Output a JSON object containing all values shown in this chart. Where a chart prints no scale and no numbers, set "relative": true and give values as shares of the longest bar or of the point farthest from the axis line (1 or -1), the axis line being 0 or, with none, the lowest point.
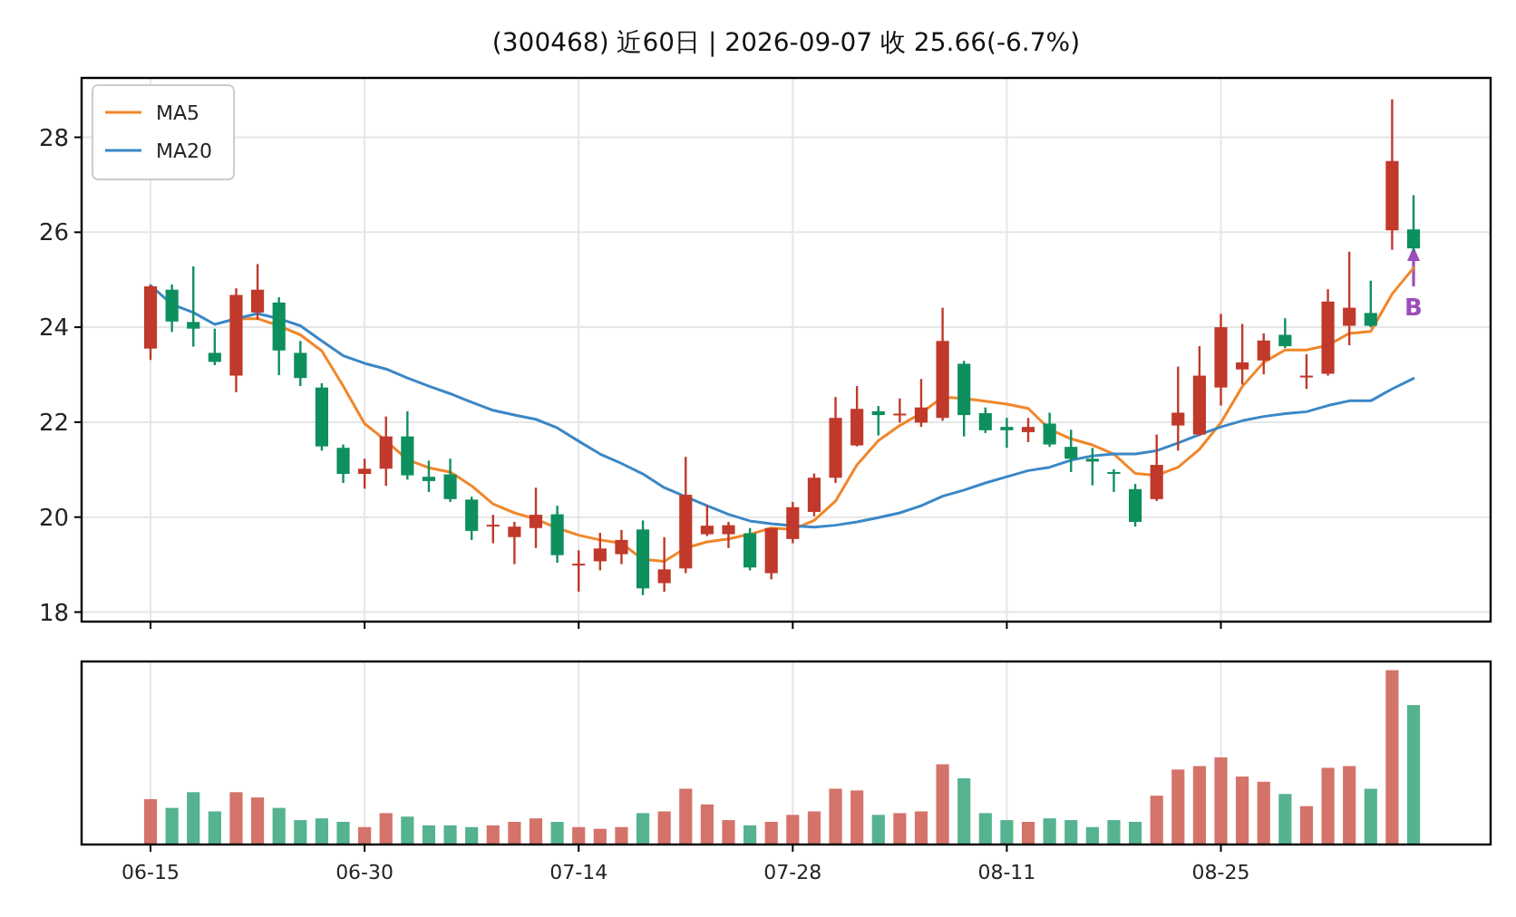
{
  "chart_data": [
    {
      "type": "candlestick",
      "title": "(300468) 近60日 | 2026-09-07 收 25.66(-6.7%)",
      "categories": [
        null,
        null,
        null,
        null,
        null,
        null,
        null,
        null,
        null,
        null,
        null,
        null,
        null,
        null,
        null,
        null,
        null,
        null,
        null,
        null,
        null,
        null,
        null,
        null,
        null,
        null,
        null,
        null,
        null,
        null,
        null,
        null,
        null,
        null,
        null,
        null,
        null,
        null,
        null,
        null,
        null,
        null,
        null,
        null,
        null,
        null,
        null,
        null,
        null,
        null,
        null,
        null,
        null,
        null,
        null,
        null,
        null,
        null,
        null,
        null
      ],
      "ohlc": [
        [
          23.55,
          24.88,
          23.31,
          24.86
        ],
        [
          24.79,
          24.9,
          23.9,
          24.12
        ],
        [
          24.11,
          25.28,
          23.59,
          23.97
        ],
        [
          23.46,
          23.97,
          23.2,
          23.27
        ],
        [
          22.98,
          24.82,
          22.63,
          24.68
        ],
        [
          24.31,
          25.33,
          24.16,
          24.79
        ],
        [
          24.52,
          24.63,
          22.99,
          23.51
        ],
        [
          23.46,
          23.71,
          22.76,
          22.93
        ],
        [
          22.73,
          22.82,
          21.4,
          21.49
        ],
        [
          21.46,
          21.53,
          20.72,
          20.91
        ],
        [
          20.91,
          21.23,
          20.6,
          21.02
        ],
        [
          21.02,
          22.12,
          20.66,
          21.7
        ],
        [
          21.7,
          22.23,
          20.79,
          20.88
        ],
        [
          20.85,
          21.19,
          20.53,
          20.76
        ],
        [
          20.9,
          21.23,
          20.32,
          20.38
        ],
        [
          20.37,
          20.43,
          19.52,
          19.71
        ],
        [
          19.82,
          20.05,
          19.45,
          19.84
        ],
        [
          19.58,
          19.9,
          19.01,
          19.8
        ],
        [
          19.77,
          20.62,
          19.35,
          20.05
        ],
        [
          20.06,
          20.24,
          19.04,
          19.2
        ],
        [
          19.0,
          19.3,
          18.43,
          19.02
        ],
        [
          19.07,
          19.67,
          18.88,
          19.34
        ],
        [
          19.22,
          19.73,
          19.01,
          19.52
        ],
        [
          19.74,
          19.93,
          18.36,
          18.5
        ],
        [
          18.61,
          19.58,
          18.43,
          18.9
        ],
        [
          18.92,
          21.27,
          18.82,
          20.47
        ],
        [
          19.64,
          20.25,
          19.6,
          19.82
        ],
        [
          19.64,
          19.9,
          19.35,
          19.83
        ],
        [
          19.66,
          19.77,
          18.88,
          18.94
        ],
        [
          18.82,
          19.77,
          18.69,
          19.77
        ],
        [
          19.54,
          20.32,
          19.45,
          20.21
        ],
        [
          20.11,
          20.92,
          20.02,
          20.83
        ],
        [
          20.83,
          22.53,
          20.72,
          22.09
        ],
        [
          21.51,
          22.76,
          21.49,
          22.28
        ],
        [
          22.23,
          22.34,
          21.72,
          22.15
        ],
        [
          22.16,
          22.5,
          21.99,
          22.18
        ],
        [
          21.99,
          22.91,
          21.9,
          22.31
        ],
        [
          22.09,
          24.41,
          22.03,
          23.71
        ],
        [
          23.23,
          23.29,
          21.7,
          22.15
        ],
        [
          22.19,
          22.31,
          21.77,
          21.83
        ],
        [
          21.9,
          22.09,
          21.46,
          21.83
        ],
        [
          21.79,
          22.09,
          21.58,
          21.9
        ],
        [
          21.97,
          22.2,
          21.48,
          21.53
        ],
        [
          21.48,
          21.84,
          20.95,
          21.23
        ],
        [
          21.23,
          21.46,
          20.67,
          21.17
        ],
        [
          20.95,
          21.01,
          20.53,
          20.94
        ],
        [
          20.59,
          20.7,
          19.8,
          19.9
        ],
        [
          20.38,
          21.74,
          20.34,
          21.1
        ],
        [
          21.93,
          23.17,
          21.4,
          22.2
        ],
        [
          21.74,
          23.6,
          21.71,
          22.98
        ],
        [
          22.73,
          24.28,
          22.35,
          24.0
        ],
        [
          23.11,
          24.07,
          22.79,
          23.26
        ],
        [
          23.3,
          23.87,
          23.01,
          23.72
        ],
        [
          23.84,
          24.19,
          23.56,
          23.6
        ],
        [
          22.96,
          23.43,
          22.7,
          22.98
        ],
        [
          23.02,
          24.8,
          22.98,
          24.54
        ],
        [
          24.03,
          25.59,
          23.62,
          24.41
        ],
        [
          24.3,
          24.98,
          24.0,
          24.03
        ],
        [
          26.04,
          28.8,
          25.63,
          27.5
        ],
        [
          26.06,
          26.78,
          25.6,
          25.66
        ]
      ],
      "colors": [
        "#c0392b",
        "#0e8f5e",
        "#0e8f5e",
        "#0e8f5e",
        "#c0392b",
        "#c0392b",
        "#0e8f5e",
        "#0e8f5e",
        "#0e8f5e",
        "#0e8f5e",
        "#c0392b",
        "#c0392b",
        "#0e8f5e",
        "#0e8f5e",
        "#0e8f5e",
        "#0e8f5e",
        "#c0392b",
        "#c0392b",
        "#c0392b",
        "#0e8f5e",
        "#c0392b",
        "#c0392b",
        "#c0392b",
        "#0e8f5e",
        "#c0392b",
        "#c0392b",
        "#c0392b",
        "#c0392b",
        "#0e8f5e",
        "#c0392b",
        "#c0392b",
        "#c0392b",
        "#c0392b",
        "#c0392b",
        "#0e8f5e",
        "#c0392b",
        "#c0392b",
        "#c0392b",
        "#0e8f5e",
        "#0e8f5e",
        "#0e8f5e",
        "#c0392b",
        "#0e8f5e",
        "#0e8f5e",
        "#0e8f5e",
        "#0e8f5e",
        "#0e8f5e",
        "#c0392b",
        "#c0392b",
        "#c0392b",
        "#c0392b",
        "#c0392b",
        "#c0392b",
        "#0e8f5e",
        "#c0392b",
        "#c0392b",
        "#c0392b",
        "#0e8f5e",
        "#c0392b",
        "#0e8f5e"
      ],
      "series": [
        {
          "name": "MA5",
          "type": "line",
          "color": "#f0862a",
          "values": [
            null,
            null,
            null,
            null,
            24.18,
            24.18,
            24.03,
            23.84,
            23.5,
            22.76,
            21.97,
            21.61,
            21.21,
            21.04,
            20.95,
            20.66,
            20.28,
            20.09,
            19.96,
            19.77,
            19.62,
            19.52,
            19.45,
            19.11,
            19.07,
            19.35,
            19.48,
            19.54,
            19.64,
            19.77,
            19.74,
            19.93,
            20.34,
            21.1,
            21.61,
            21.93,
            22.19,
            22.53,
            22.5,
            22.44,
            22.38,
            22.29,
            21.85,
            21.65,
            21.52,
            21.33,
            20.92,
            20.88,
            21.05,
            21.43,
            21.99,
            22.75,
            23.26,
            23.52,
            23.52,
            23.62,
            23.87,
            23.91,
            24.7,
            25.25
          ]
        },
        {
          "name": "MA20",
          "type": "line",
          "color": "#3a87c6",
          "values": [
            24.88,
            24.48,
            24.31,
            24.06,
            24.18,
            24.29,
            24.18,
            24.03,
            23.71,
            23.4,
            23.24,
            23.12,
            22.93,
            22.76,
            22.6,
            22.42,
            22.25,
            22.15,
            22.06,
            21.88,
            21.6,
            21.33,
            21.13,
            20.91,
            20.62,
            20.43,
            20.24,
            20.06,
            19.92,
            19.86,
            19.82,
            19.79,
            19.83,
            19.9,
            19.99,
            20.09,
            20.24,
            20.44,
            20.57,
            20.72,
            20.85,
            20.98,
            21.05,
            21.2,
            21.29,
            21.33,
            21.33,
            21.4,
            21.56,
            21.74,
            21.9,
            22.03,
            22.12,
            22.18,
            22.22,
            22.35,
            22.45,
            22.45,
            22.7,
            22.92
          ]
        }
      ],
      "ylim": [
        17.8,
        29.25
      ],
      "yticks": [
        18,
        20,
        22,
        24,
        26,
        28
      ],
      "grid": true,
      "legend": "top left",
      "tick_labels": "y",
      "annotations": [
        {
          "text": "B",
          "y": 25.7
        }
      ]
    },
    {
      "type": "bar",
      "relative": true,
      "tick_labels": "x",
      "grid": "x",
      "categories": [
        "06-15",
        null,
        null,
        null,
        null,
        null,
        null,
        null,
        null,
        null,
        "06-30",
        null,
        null,
        null,
        null,
        null,
        null,
        null,
        null,
        null,
        "07-14",
        null,
        null,
        null,
        null,
        null,
        null,
        null,
        null,
        null,
        "07-28",
        null,
        null,
        null,
        null,
        null,
        null,
        null,
        null,
        null,
        "08-11",
        null,
        null,
        null,
        null,
        null,
        null,
        null,
        null,
        null,
        "08-25",
        null,
        null,
        null,
        null,
        null,
        null,
        null,
        null,
        null
      ],
      "values": [
        0.26,
        0.21,
        0.3,
        0.19,
        0.3,
        0.27,
        0.21,
        0.14,
        0.15,
        0.13,
        0.1,
        0.18,
        0.16,
        0.11,
        0.11,
        0.1,
        0.11,
        0.13,
        0.15,
        0.13,
        0.1,
        0.09,
        0.1,
        0.18,
        0.19,
        0.32,
        0.23,
        0.14,
        0.11,
        0.13,
        0.17,
        0.19,
        0.32,
        0.31,
        0.17,
        0.18,
        0.19,
        0.46,
        0.38,
        0.18,
        0.14,
        0.13,
        0.15,
        0.14,
        0.1,
        0.14,
        0.13,
        0.28,
        0.43,
        0.45,
        0.5,
        0.39,
        0.36,
        0.29,
        0.22,
        0.44,
        0.45,
        0.32,
        1,
        0.8
      ],
      "colors": [
        "#d4736a",
        "#55b38f",
        "#55b38f",
        "#55b38f",
        "#d4736a",
        "#d4736a",
        "#55b38f",
        "#55b38f",
        "#55b38f",
        "#55b38f",
        "#d4736a",
        "#d4736a",
        "#55b38f",
        "#55b38f",
        "#55b38f",
        "#55b38f",
        "#d4736a",
        "#d4736a",
        "#d4736a",
        "#55b38f",
        "#d4736a",
        "#d4736a",
        "#d4736a",
        "#55b38f",
        "#d4736a",
        "#d4736a",
        "#d4736a",
        "#d4736a",
        "#55b38f",
        "#d4736a",
        "#d4736a",
        "#d4736a",
        "#d4736a",
        "#d4736a",
        "#55b38f",
        "#d4736a",
        "#d4736a",
        "#d4736a",
        "#55b38f",
        "#55b38f",
        "#55b38f",
        "#d4736a",
        "#55b38f",
        "#55b38f",
        "#55b38f",
        "#55b38f",
        "#55b38f",
        "#d4736a",
        "#d4736a",
        "#d4736a",
        "#d4736a",
        "#d4736a",
        "#d4736a",
        "#55b38f",
        "#d4736a",
        "#d4736a",
        "#d4736a",
        "#55b38f",
        "#d4736a",
        "#55b38f"
      ]
    }
  ]
}
